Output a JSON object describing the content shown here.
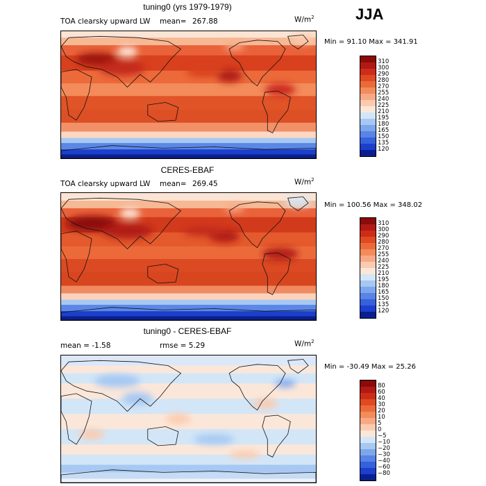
{
  "season": "JJA",
  "chart_data": [
    {
      "type": "heatmap",
      "title": "tuning0 (yrs 1979-1979)",
      "subtitle": "TOA clearsky upward LW",
      "mean_label": "mean=",
      "mean_value": "267.88",
      "units": "W/m",
      "units_exp": "2",
      "minmax": "Min =  91.10 Max = 341.91",
      "levels": [
        "310",
        "300",
        "290",
        "280",
        "270",
        "255",
        "240",
        "225",
        "210",
        "195",
        "180",
        "165",
        "150",
        "135",
        "120"
      ],
      "colors": [
        "#8c0a0a",
        "#b01a14",
        "#cd2c1a",
        "#e04a22",
        "#ec6a3a",
        "#f38b5a",
        "#f7a985",
        "#fbcbaf",
        "#fbe7da",
        "#d3e6f7",
        "#a6c8f2",
        "#7ea6ec",
        "#5884e6",
        "#3660dc",
        "#1c40cc",
        "#08208f"
      ],
      "zones": [
        [
          0.0,
          "#fbe4d4"
        ],
        [
          0.05,
          "#f7b894"
        ],
        [
          0.11,
          "#e9623a"
        ],
        [
          0.19,
          "#d8401e"
        ],
        [
          0.31,
          "#ec6a3a"
        ],
        [
          0.41,
          "#f38b5a"
        ],
        [
          0.51,
          "#e05428"
        ],
        [
          0.62,
          "#dd4f25"
        ],
        [
          0.72,
          "#f29168"
        ],
        [
          0.79,
          "#fbd7c4"
        ],
        [
          0.84,
          "#a6c8f2"
        ],
        [
          0.88,
          "#5b88e6"
        ],
        [
          0.93,
          "#1c40cc"
        ],
        [
          0.97,
          "#0a1f8d"
        ]
      ],
      "blobs": [
        [
          "#9c1210",
          0.14,
          0.22,
          0.08,
          0.05
        ],
        [
          "#c42a1a",
          0.24,
          0.29,
          0.09,
          0.06
        ],
        [
          "#fbe7da",
          0.26,
          0.16,
          0.04,
          0.04
        ],
        [
          "#b01a14",
          0.66,
          0.35,
          0.05,
          0.05
        ],
        [
          "#cd2c1a",
          0.86,
          0.46,
          0.06,
          0.05
        ],
        [
          "#f7a985",
          0.68,
          0.12,
          0.04,
          0.03
        ],
        [
          "#fbcbaf",
          0.95,
          0.06,
          0.05,
          0.04
        ],
        [
          "#d8401e",
          0.56,
          0.32,
          0.07,
          0.04
        ]
      ]
    },
    {
      "type": "heatmap",
      "title": "CERES-EBAF",
      "subtitle": "TOA clearsky upward LW",
      "mean_label": "mean=",
      "mean_value": "269.45",
      "units": "W/m",
      "units_exp": "2",
      "minmax": "Min = 100.56 Max = 348.02",
      "levels": [
        "310",
        "300",
        "290",
        "280",
        "270",
        "255",
        "240",
        "225",
        "210",
        "195",
        "180",
        "165",
        "150",
        "135",
        "120"
      ],
      "colors": [
        "#8c0a0a",
        "#b01a14",
        "#cd2c1a",
        "#e04a22",
        "#ec6a3a",
        "#f38b5a",
        "#f7a985",
        "#fbcbaf",
        "#fbe7da",
        "#d3e6f7",
        "#a6c8f2",
        "#7ea6ec",
        "#5884e6",
        "#3660dc",
        "#1c40cc",
        "#08208f"
      ],
      "zones": [
        [
          0.0,
          "#fbe4d4"
        ],
        [
          0.06,
          "#f7b894"
        ],
        [
          0.12,
          "#e9623a"
        ],
        [
          0.19,
          "#d23a1c"
        ],
        [
          0.31,
          "#e45a2c"
        ],
        [
          0.42,
          "#ec6a3a"
        ],
        [
          0.52,
          "#db4a22"
        ],
        [
          0.62,
          "#d84620"
        ],
        [
          0.73,
          "#f08a60"
        ],
        [
          0.79,
          "#fbd3bd"
        ],
        [
          0.84,
          "#a6c8f2"
        ],
        [
          0.88,
          "#5b88e6"
        ],
        [
          0.93,
          "#1c40cc"
        ],
        [
          0.97,
          "#0a1f8d"
        ]
      ],
      "blobs": [
        [
          "#8c0a0a",
          0.12,
          0.24,
          0.1,
          0.06
        ],
        [
          "#b01a14",
          0.26,
          0.3,
          0.1,
          0.06
        ],
        [
          "#fbe7da",
          0.27,
          0.16,
          0.04,
          0.04
        ],
        [
          "#b01a14",
          0.64,
          0.34,
          0.06,
          0.05
        ],
        [
          "#b01a14",
          0.86,
          0.48,
          0.07,
          0.05
        ],
        [
          "#f7a985",
          0.68,
          0.12,
          0.04,
          0.03
        ],
        [
          "#d3e6f7",
          0.93,
          0.07,
          0.05,
          0.04
        ],
        [
          "#c42a1a",
          0.56,
          0.3,
          0.08,
          0.04
        ]
      ]
    },
    {
      "type": "heatmap",
      "title": "tuning0 - CERES-EBAF",
      "mean_text": "mean =   -1.58",
      "rmse_text": "rmse =    5.29",
      "units": "W/m",
      "units_exp": "2",
      "minmax": "Min = -30.49 Max =  25.26",
      "levels": [
        "80",
        "60",
        "40",
        "30",
        "20",
        "10",
        "5",
        "0",
        "−5",
        "−10",
        "−20",
        "−30",
        "−40",
        "−60",
        "−80"
      ],
      "colors": [
        "#8c0a0a",
        "#b01a14",
        "#cd2c1a",
        "#e04a22",
        "#ec6a3a",
        "#f38b5a",
        "#f7a985",
        "#fbcbaf",
        "#fbe7da",
        "#d3e6f7",
        "#a6c8f2",
        "#7ea6ec",
        "#5884e6",
        "#3660dc",
        "#1c40cc",
        "#08208f"
      ],
      "zones": [
        [
          0.0,
          "#dce8f8"
        ],
        [
          0.08,
          "#fbe7da"
        ],
        [
          0.14,
          "#d3e6f7"
        ],
        [
          0.22,
          "#fbe7da"
        ],
        [
          0.34,
          "#d3e6f7"
        ],
        [
          0.46,
          "#fbe7da"
        ],
        [
          0.58,
          "#d3e6f7"
        ],
        [
          0.7,
          "#fbe7da"
        ],
        [
          0.78,
          "#d3e6f7"
        ],
        [
          0.86,
          "#a6c8f2"
        ],
        [
          0.92,
          "#c6dcf5"
        ],
        [
          0.97,
          "#eef3fb"
        ]
      ],
      "blobs": [
        [
          "#a6c8f2",
          0.22,
          0.2,
          0.09,
          0.05
        ],
        [
          "#a6c8f2",
          0.3,
          0.34,
          0.06,
          0.05
        ],
        [
          "#fbcbaf",
          0.46,
          0.5,
          0.05,
          0.04
        ],
        [
          "#fbcbaf",
          0.8,
          0.38,
          0.05,
          0.04
        ],
        [
          "#a6c8f2",
          0.6,
          0.66,
          0.08,
          0.04
        ],
        [
          "#fbcbaf",
          0.12,
          0.62,
          0.05,
          0.04
        ],
        [
          "#7ea6ec",
          0.88,
          0.22,
          0.04,
          0.03
        ],
        [
          "#fbcbaf",
          0.72,
          0.78,
          0.06,
          0.03
        ]
      ]
    }
  ]
}
